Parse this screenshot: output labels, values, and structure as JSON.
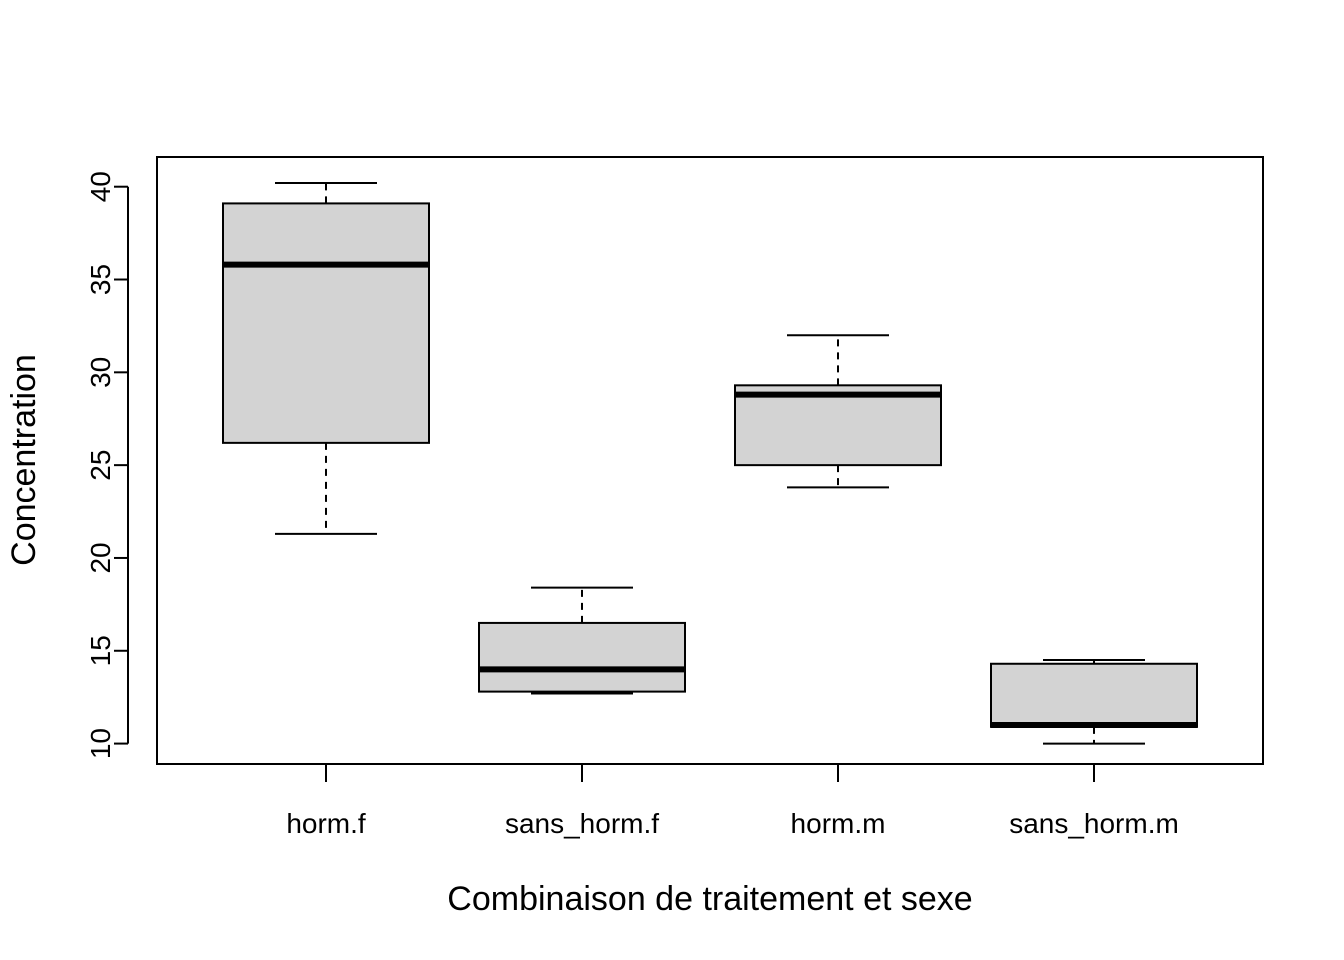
{
  "chart_data": {
    "type": "boxplot",
    "title": "",
    "xlabel": "Combinaison de traitement et sexe",
    "ylabel": "Concentration",
    "ylim": [
      8.9,
      41.6
    ],
    "yticks": [
      10,
      15,
      20,
      25,
      30,
      35,
      40
    ],
    "grid": false,
    "box_color": "#d3d3d3",
    "categories": [
      "horm.f",
      "sans_horm.f",
      "horm.m",
      "sans_horm.m"
    ],
    "boxes": [
      {
        "category": "horm.f",
        "min": 21.3,
        "q1": 26.2,
        "median": 35.8,
        "q3": 39.1,
        "max": 40.2
      },
      {
        "category": "sans_horm.f",
        "min": 12.7,
        "q1": 12.8,
        "median": 14.0,
        "q3": 16.5,
        "max": 18.4
      },
      {
        "category": "horm.m",
        "min": 23.8,
        "q1": 25.0,
        "median": 28.8,
        "q3": 29.3,
        "max": 32.0
      },
      {
        "category": "sans_horm.m",
        "min": 10.0,
        "q1": 10.9,
        "median": 11.0,
        "q3": 14.3,
        "max": 14.5
      }
    ]
  }
}
